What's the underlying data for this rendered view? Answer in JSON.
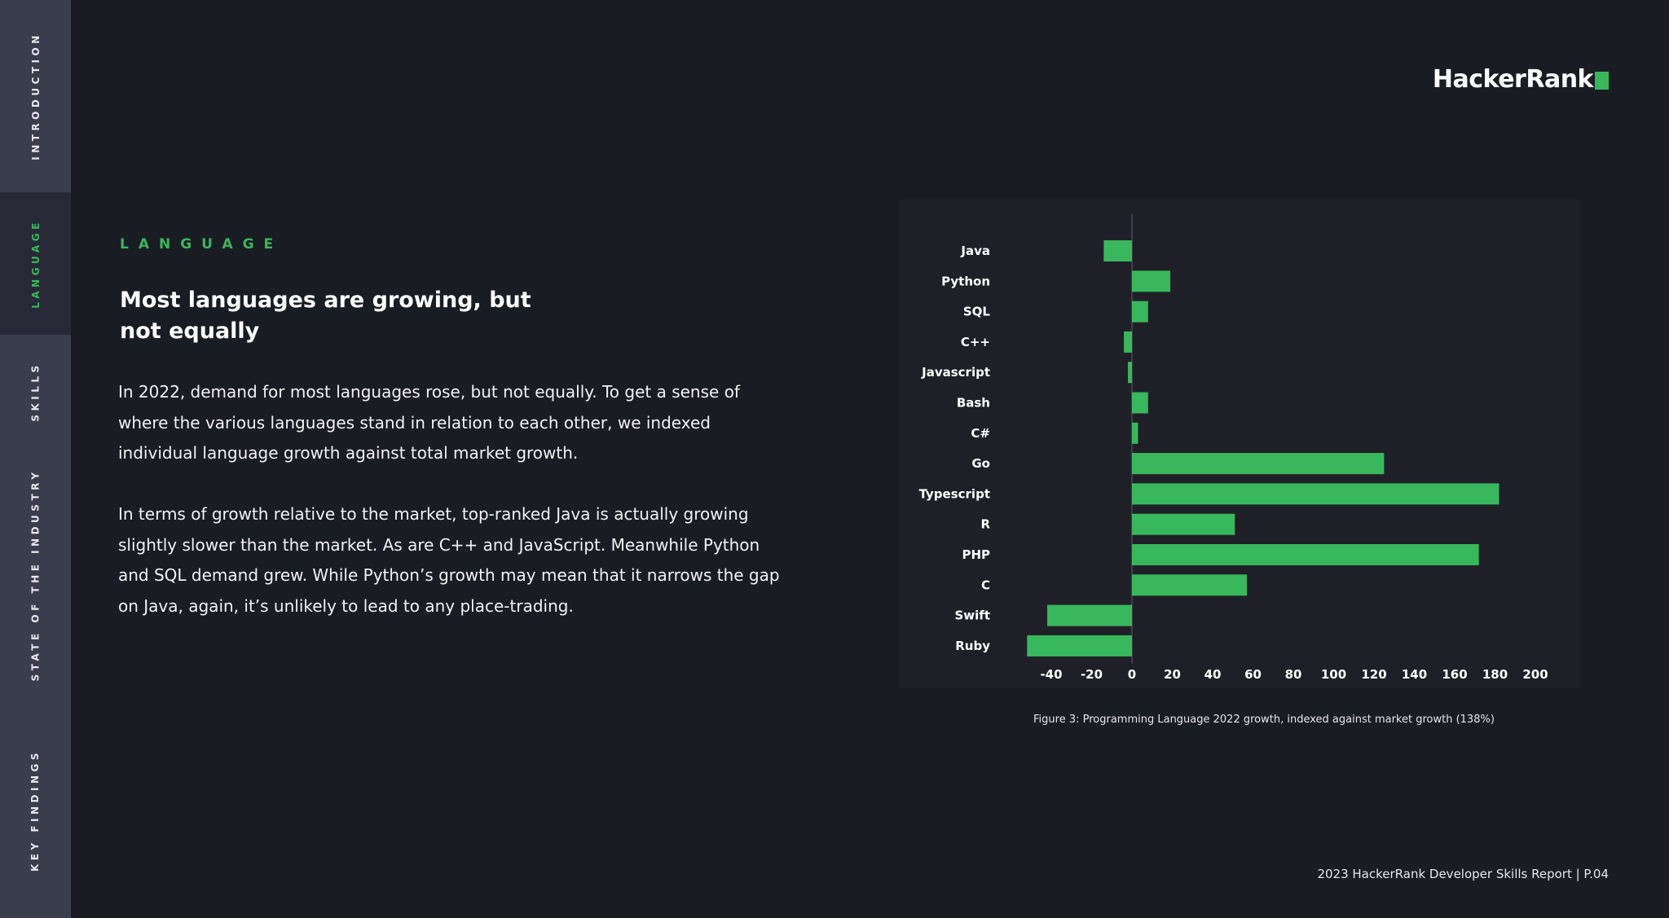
{
  "sidebar": {
    "items": [
      {
        "label": "INTRODUCTION",
        "active": false
      },
      {
        "label": "LANGUAGE",
        "active": true
      },
      {
        "label": "SKILLS",
        "active": false
      },
      {
        "label": "STATE OF THE INDUSTRY",
        "active": false
      },
      {
        "label": "KEY FINDINGS",
        "active": false
      }
    ]
  },
  "logo": {
    "text": "HackerRank",
    "accent_color": "#39b75d"
  },
  "section": {
    "eyebrow": "LANGUAGE",
    "headline": "Most languages are growing, but not equally",
    "paragraphs": [
      "In 2022, demand for most languages rose, but not equally. To get a sense of where the various languages stand in relation to each other, we indexed individual language growth against total market growth.",
      "In terms of growth relative to the market, top-ranked Java is actually growing slightly slower than the market. As are C++ and JavaScript. Meanwhile Python and SQL demand grew. While Python’s growth may mean that it narrows the gap on Java, again, it’s unlikely to lead to any place-trading."
    ]
  },
  "chart_data": {
    "type": "bar",
    "orientation": "horizontal",
    "categories": [
      "Java",
      "Python",
      "SQL",
      "C++",
      "Javascript",
      "Bash",
      "C#",
      "Go",
      "Typescript",
      "R",
      "PHP",
      "C",
      "Swift",
      "Ruby"
    ],
    "values": [
      -14,
      19,
      8,
      -4,
      -2,
      8,
      3,
      125,
      182,
      51,
      172,
      57,
      -42,
      -52
    ],
    "xlim": [
      -52,
      200
    ],
    "xticks": [
      -40,
      -20,
      0,
      20,
      40,
      60,
      80,
      100,
      120,
      140,
      160,
      180,
      200
    ],
    "bar_color": "#39b75d",
    "grid": false,
    "legend": "none",
    "caption": "Figure 3: Programming Language 2022 growth, indexed against market growth (138%)"
  },
  "footer": {
    "text": "2023 HackerRank Developer Skills Report | P.04"
  }
}
